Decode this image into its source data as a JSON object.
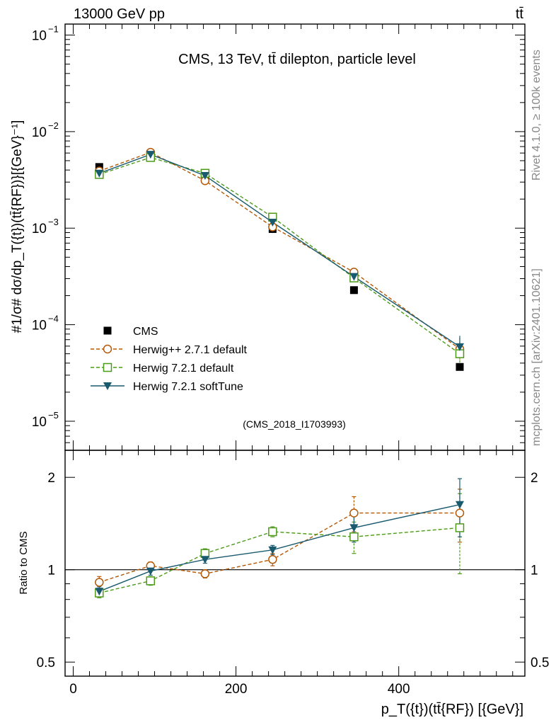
{
  "header": {
    "left_label": "13000 GeV pp",
    "right_label": "tt̄"
  },
  "side_labels": {
    "rivet": "Rivet 4.1.0, ≥ 100k events",
    "mcplots": "mcplots.cern.ch [arXiv:2401.10621]"
  },
  "chart_data": [
    {
      "type": "line",
      "panel": "main",
      "title": "CMS, 13 TeV, tt̄ dilepton, particle level",
      "watermark": "(CMS_2018_I1703993)",
      "ylabel": "#1/σ# dσ/dp_T({t})(tt̄{RF})}[{GeV}⁻¹]",
      "yscale": "log",
      "ylim": [
        5e-06,
        0.13
      ],
      "y_ticks": [
        {
          "value": 0.1,
          "base": "10",
          "exp": "−1"
        },
        {
          "value": 0.01,
          "base": "10",
          "exp": "−2"
        },
        {
          "value": 0.001,
          "base": "10",
          "exp": "−3"
        },
        {
          "value": 0.0001,
          "base": "10",
          "exp": "−4"
        },
        {
          "value": 1e-05,
          "base": "10",
          "exp": "−5"
        }
      ],
      "xlim": [
        -10,
        555
      ],
      "x": [
        32,
        95,
        162,
        245,
        345,
        475
      ],
      "series": [
        {
          "name": "CMS",
          "style": "data",
          "color": "#000000",
          "values": [
            0.0043,
            0.0059,
            0.0033,
            0.00098,
            0.000228,
            3.65e-05
          ]
        },
        {
          "name": "Herwig++ 2.7.1 default",
          "style": "circle-dashed",
          "color": "#b35806",
          "values": [
            0.0039,
            0.0061,
            0.0031,
            0.00103,
            0.00035,
            5.6e-05
          ]
        },
        {
          "name": "Herwig 7.2.1 default",
          "style": "square-dashed",
          "color": "#4d9a1a",
          "values": [
            0.0036,
            0.0054,
            0.0037,
            0.0013,
            0.000305,
            5e-05
          ]
        },
        {
          "name": "Herwig 7.2.1 softTune",
          "style": "triangle-solid",
          "color": "#1a5a6e",
          "values": [
            0.0037,
            0.0058,
            0.0035,
            0.00115,
            0.000315,
            5.9e-05
          ]
        }
      ]
    },
    {
      "type": "line",
      "panel": "ratio",
      "ylabel": "Ratio to CMS",
      "xlabel": "p_T({t})(tt̄{RF}) [{GeV}]",
      "yscale": "log",
      "ylim": [
        0.45,
        2.45
      ],
      "y_ticks": [
        {
          "value": 0.5,
          "label": "0.5"
        },
        {
          "value": 1,
          "label": "1"
        },
        {
          "value": 2,
          "label": "2"
        }
      ],
      "x_ticks": [
        {
          "value": 0,
          "label": "0"
        },
        {
          "value": 200,
          "label": "200"
        },
        {
          "value": 400,
          "label": "400"
        }
      ],
      "xlim": [
        -10,
        555
      ],
      "x": [
        32,
        95,
        162,
        245,
        345,
        475
      ],
      "series": [
        {
          "name": "Herwig++ 2.7.1 default",
          "style": "circle-dashed",
          "color": "#b35806",
          "values": [
            0.91,
            1.03,
            0.97,
            1.08,
            1.53,
            1.53
          ],
          "errors": [
            0.04,
            0.03,
            0.03,
            0.05,
            0.2,
            0.3
          ]
        },
        {
          "name": "Herwig 7.2.1 default",
          "style": "square-dashed",
          "color": "#4d9a1a",
          "values": [
            0.84,
            0.92,
            1.13,
            1.33,
            1.28,
            1.37
          ],
          "errors": [
            0.03,
            0.03,
            0.04,
            0.05,
            0.15,
            0.4
          ]
        },
        {
          "name": "Herwig 7.2.1 softTune",
          "style": "triangle-solid",
          "color": "#1a5a6e",
          "values": [
            0.85,
            0.99,
            1.08,
            1.16,
            1.37,
            1.63
          ],
          "errors": [
            0.03,
            0.03,
            0.03,
            0.04,
            0.14,
            0.35
          ]
        }
      ]
    }
  ]
}
